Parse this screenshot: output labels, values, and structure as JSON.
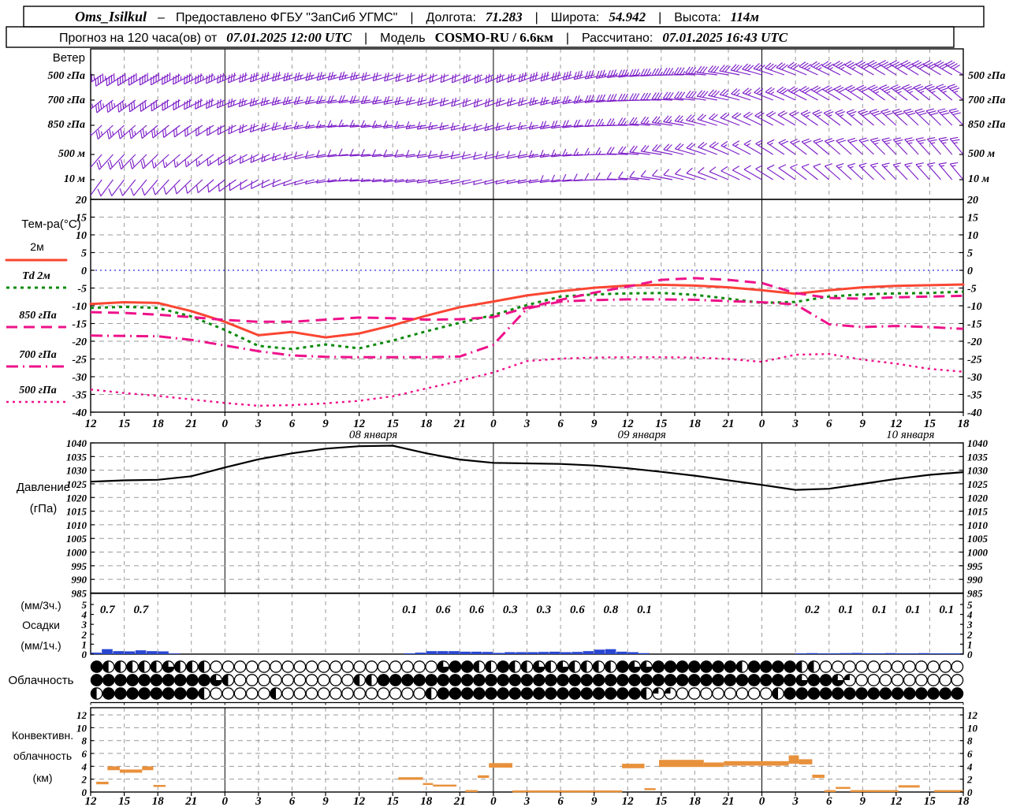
{
  "header": {
    "station": "Oms_Isilkul",
    "dash": "–",
    "provided": "Предоставлено ФГБУ \"ЗапСиб УГМС\"",
    "sep": "|",
    "lon_label": "Долгота:",
    "lon_value": "71.283",
    "lat_label": "Широта:",
    "lat_value": "54.942",
    "alt_label": "Высота:",
    "alt_value": "114м",
    "forecast_label": "Прогноз на 120 часа(ов) от",
    "run_time": "07.01.2025 12:00 UTC",
    "model_label": "Модель",
    "model_value": "COSMO-RU / 6.6км",
    "calc_label": "Рассчитано:",
    "calc_value": "07.01.2025 16:43 UTC"
  },
  "panels": {
    "wind_label": "Ветер",
    "wind_levels": [
      "500 гПа",
      "700 гПа",
      "850 гПа",
      "500 м",
      "10 м"
    ],
    "temp_label": "Тем-ра(°C)",
    "legend_t2m": "2м",
    "legend_td": "Td  2м",
    "legend_850": "850 гПа",
    "legend_700": "700 гПа",
    "legend_500": "500 гПа",
    "pressure_label_1": "Давление",
    "pressure_label_2": "(гПа)",
    "precip_label_1": "(мм/3ч.)",
    "precip_label_2": "Осадки",
    "precip_label_3": "(мм/1ч.)",
    "cloud_label": "Облачность",
    "conv_label_1": "Конвективн.",
    "conv_label_2": "облачность",
    "conv_label_3": "(км)"
  },
  "time_axis": {
    "total_hours": 78,
    "tick_step_hours": 3,
    "hour_labels": [
      "12",
      "15",
      "18",
      "21",
      "0",
      "3",
      "6",
      "9",
      "12",
      "15",
      "18",
      "21",
      "0",
      "3",
      "6",
      "9",
      "12",
      "15",
      "18",
      "21",
      "0",
      "3",
      "6",
      "9",
      "12",
      "15",
      "18"
    ],
    "date_labels": [
      {
        "h": 24,
        "text": "08 января"
      },
      {
        "h": 48,
        "text": "09 января"
      },
      {
        "h": 72,
        "text": "10 января"
      }
    ],
    "midnight_hours": [
      12,
      36,
      60
    ]
  },
  "chart_data": [
    {
      "id": "wind",
      "type": "wind-barbs",
      "title": "Ветер",
      "color": "#7d1ec8",
      "keyframe_hours": [
        0,
        6,
        12,
        18,
        24,
        30,
        36,
        42,
        48,
        54,
        60,
        66,
        72,
        78
      ],
      "rows": [
        {
          "level": "500 гПа",
          "dir_deg": [
            235,
            240,
            245,
            252,
            256,
            250,
            246,
            252,
            262,
            272,
            286,
            296,
            302,
            300
          ],
          "speed_kt": [
            45,
            40,
            34,
            28,
            24,
            20,
            24,
            30,
            34,
            34,
            30,
            34,
            40,
            42
          ]
        },
        {
          "level": "700 гПа",
          "dir_deg": [
            230,
            236,
            246,
            256,
            262,
            256,
            250,
            256,
            266,
            276,
            290,
            300,
            306,
            310
          ],
          "speed_kt": [
            35,
            32,
            28,
            24,
            20,
            18,
            20,
            24,
            30,
            30,
            26,
            30,
            34,
            36
          ]
        },
        {
          "level": "850 гПа",
          "dir_deg": [
            226,
            230,
            240,
            256,
            266,
            260,
            254,
            260,
            270,
            282,
            296,
            306,
            312,
            316
          ],
          "speed_kt": [
            26,
            24,
            20,
            18,
            15,
            14,
            15,
            18,
            24,
            24,
            20,
            24,
            30,
            30
          ]
        },
        {
          "level": "500 м",
          "dir_deg": [
            220,
            226,
            236,
            252,
            266,
            262,
            256,
            262,
            272,
            286,
            300,
            310,
            316,
            320
          ],
          "speed_kt": [
            20,
            18,
            15,
            14,
            10,
            10,
            10,
            14,
            18,
            20,
            16,
            20,
            24,
            24
          ]
        },
        {
          "level": "10 м",
          "dir_deg": [
            215,
            220,
            232,
            250,
            266,
            262,
            256,
            262,
            272,
            286,
            300,
            310,
            316,
            320
          ],
          "speed_kt": [
            10,
            12,
            10,
            8,
            6,
            5,
            6,
            8,
            10,
            12,
            10,
            12,
            15,
            15
          ]
        }
      ]
    },
    {
      "id": "temperature",
      "type": "line",
      "ylabel": "Тем-ра(°C)",
      "ylim": [
        -40,
        20
      ],
      "yticks": [
        20,
        15,
        10,
        5,
        0,
        -5,
        -10,
        -15,
        -20,
        -25,
        -30,
        -35,
        -40
      ],
      "zero_line_color": "#2a2aee",
      "x_hours": [
        0,
        3,
        6,
        9,
        12,
        15,
        18,
        21,
        24,
        27,
        30,
        33,
        36,
        39,
        42,
        45,
        48,
        51,
        54,
        57,
        60,
        63,
        66,
        69,
        72,
        75,
        78
      ],
      "series": [
        {
          "name": "2м",
          "css": "t2m",
          "color": "#fa4632",
          "style": "solid",
          "values": [
            -9.5,
            -9.0,
            -9.2,
            -11.5,
            -14.5,
            -18.3,
            -17.4,
            -18.9,
            -17.8,
            -15.5,
            -12.8,
            -10.4,
            -8.8,
            -7.1,
            -5.9,
            -4.9,
            -4.3,
            -4.1,
            -4.3,
            -4.8,
            -5.6,
            -6.6,
            -5.6,
            -4.8,
            -4.4,
            -4.2,
            -4.0
          ]
        },
        {
          "name": "Td 2м",
          "css": "td",
          "color": "#0c8a0c",
          "style": "dotted",
          "values": [
            -10.6,
            -10.3,
            -10.6,
            -13.0,
            -16.8,
            -21.3,
            -22.2,
            -20.9,
            -22.0,
            -19.8,
            -17.2,
            -14.8,
            -12.6,
            -9.8,
            -7.4,
            -6.8,
            -6.5,
            -6.4,
            -6.9,
            -8.0,
            -9.2,
            -8.9,
            -7.4,
            -6.8,
            -6.5,
            -6.4,
            -6.0
          ]
        },
        {
          "name": "850 гПа",
          "css": "p850",
          "color": "#ee128a",
          "style": "dashed",
          "values": [
            -11.8,
            -12.0,
            -12.5,
            -13.2,
            -14.0,
            -14.5,
            -14.5,
            -13.9,
            -13.3,
            -13.5,
            -13.9,
            -13.8,
            -13.2,
            -10.5,
            -8.3,
            -6.3,
            -4.6,
            -2.7,
            -2.2,
            -2.7,
            -3.6,
            -6.4,
            -7.8,
            -8.0,
            -7.6,
            -7.4,
            -7.2
          ]
        },
        {
          "name": "700 гПа",
          "css": "p700",
          "color": "#ee128a",
          "style": "dashdot",
          "values": [
            -18.4,
            -18.5,
            -18.6,
            -19.6,
            -21.2,
            -22.8,
            -24.0,
            -24.4,
            -24.5,
            -24.5,
            -24.5,
            -24.3,
            -21.0,
            -10.8,
            -8.8,
            -8.4,
            -8.2,
            -8.2,
            -8.3,
            -8.7,
            -9.0,
            -9.6,
            -15.2,
            -16.0,
            -15.7,
            -16.0,
            -16.5
          ]
        },
        {
          "name": "500 гПа",
          "css": "p500",
          "color": "#ee128a",
          "style": "fine-dotted",
          "values": [
            -33.6,
            -34.6,
            -35.4,
            -36.4,
            -37.4,
            -38.2,
            -38.0,
            -37.5,
            -36.8,
            -35.5,
            -33.3,
            -31.2,
            -28.8,
            -25.6,
            -24.9,
            -24.6,
            -24.5,
            -24.5,
            -24.6,
            -25.0,
            -25.8,
            -23.8,
            -23.6,
            -25.2,
            -26.3,
            -27.8,
            -28.6
          ]
        }
      ]
    },
    {
      "id": "pressure",
      "type": "line",
      "ylabel": "Давление (гПа)",
      "ylim": [
        985,
        1040
      ],
      "yticks": [
        1040,
        1035,
        1030,
        1025,
        1020,
        1015,
        1010,
        1005,
        1000,
        995,
        990,
        985
      ],
      "color": "#000000",
      "x_hours": [
        0,
        3,
        6,
        9,
        12,
        15,
        18,
        21,
        24,
        27,
        30,
        33,
        36,
        39,
        42,
        45,
        48,
        51,
        54,
        57,
        60,
        63,
        66,
        69,
        72,
        75,
        78
      ],
      "values": [
        1025.8,
        1026.3,
        1026.5,
        1027.8,
        1031.0,
        1034.0,
        1036.2,
        1037.9,
        1038.8,
        1039.0,
        1036.2,
        1033.9,
        1032.7,
        1032.5,
        1032.3,
        1031.7,
        1030.7,
        1029.4,
        1028.0,
        1026.3,
        1024.6,
        1022.8,
        1023.2,
        1025.0,
        1026.8,
        1028.3,
        1029.3
      ]
    },
    {
      "id": "precipitation",
      "type": "bar",
      "ylabel": "Осадки (мм/3ч.) / (мм/1ч.)",
      "ylim": [
        0,
        5
      ],
      "yticks": [
        5,
        4,
        3,
        2,
        1,
        0
      ],
      "bar_color": "#2946d2",
      "amounts_3h": [
        {
          "h": 1.5,
          "v": "0.7"
        },
        {
          "h": 4.5,
          "v": "0.7"
        },
        {
          "h": 28.5,
          "v": "0.1"
        },
        {
          "h": 31.5,
          "v": "0.6"
        },
        {
          "h": 34.5,
          "v": "0.6"
        },
        {
          "h": 37.5,
          "v": "0.3"
        },
        {
          "h": 40.5,
          "v": "0.3"
        },
        {
          "h": 43.5,
          "v": "0.6"
        },
        {
          "h": 46.5,
          "v": "0.8"
        },
        {
          "h": 49.5,
          "v": "0.1"
        },
        {
          "h": 64.5,
          "v": "0.2"
        },
        {
          "h": 67.5,
          "v": "0.1"
        },
        {
          "h": 70.5,
          "v": "0.1"
        },
        {
          "h": 73.5,
          "v": "0.1"
        },
        {
          "h": 76.5,
          "v": "0.1"
        }
      ],
      "hourly_bars": [
        [
          0,
          0.15
        ],
        [
          1,
          0.5
        ],
        [
          2,
          0.3
        ],
        [
          3,
          0.28
        ],
        [
          4,
          0.38
        ],
        [
          5,
          0.3
        ],
        [
          6,
          0.28
        ],
        [
          7,
          0.07
        ],
        [
          28,
          0.08
        ],
        [
          29,
          0.15
        ],
        [
          30,
          0.3
        ],
        [
          31,
          0.3
        ],
        [
          32,
          0.3
        ],
        [
          33,
          0.25
        ],
        [
          34,
          0.25
        ],
        [
          35,
          0.22
        ],
        [
          36,
          0.13
        ],
        [
          37,
          0.2
        ],
        [
          38,
          0.2
        ],
        [
          39,
          0.2
        ],
        [
          40,
          0.22
        ],
        [
          41,
          0.25
        ],
        [
          42,
          0.2
        ],
        [
          43,
          0.22
        ],
        [
          44,
          0.3
        ],
        [
          45,
          0.45
        ],
        [
          46,
          0.5
        ],
        [
          47,
          0.25
        ],
        [
          48,
          0.2
        ],
        [
          49,
          0.1
        ],
        [
          63,
          0.08
        ],
        [
          64,
          0.1
        ],
        [
          65,
          0.08
        ],
        [
          66,
          0.08
        ],
        [
          67,
          0.1
        ],
        [
          68,
          0.12
        ],
        [
          69,
          0.08
        ],
        [
          70,
          0.08
        ],
        [
          71,
          0.1
        ],
        [
          72,
          0.08
        ],
        [
          73,
          0.08
        ],
        [
          74,
          0.1
        ],
        [
          75,
          0.08
        ],
        [
          76,
          0.08
        ],
        [
          77,
          0.08
        ]
      ]
    },
    {
      "id": "cloudiness",
      "type": "heatmap",
      "ylabel": "Облачность",
      "legend_note": "0=ясно 4=сплошная",
      "rows": [
        "4222223222000000000000000000034422422323222243344444442444422000000000000",
        "4444444444320000000000224444444444444444444444444444444444434431000000000",
        "2444444442000002000000000000244444444444444444211000000002444444444444444"
      ]
    },
    {
      "id": "convective-cloudiness",
      "type": "area",
      "ylabel": "Конвективн. облачность (км)",
      "ylim": [
        0,
        12
      ],
      "yticks": [
        12,
        10,
        8,
        6,
        4,
        2,
        0
      ],
      "color": "#e8913c",
      "segments": [
        [
          0.5,
          1.6,
          1.6,
          1.2
        ],
        [
          1.5,
          2.6,
          4.0,
          3.4
        ],
        [
          2.6,
          4.6,
          3.5,
          3.0
        ],
        [
          4.6,
          5.6,
          4.0,
          3.4
        ],
        [
          5.6,
          6.7,
          1.1,
          0.85
        ],
        [
          27.5,
          29.7,
          2.3,
          1.9
        ],
        [
          29.7,
          30.6,
          1.4,
          1.15
        ],
        [
          30.6,
          32.7,
          1.15,
          0.9
        ],
        [
          33.5,
          34.6,
          0.3,
          0.12
        ],
        [
          34.6,
          35.6,
          2.6,
          2.2
        ],
        [
          35.6,
          37.7,
          4.5,
          3.8
        ],
        [
          37.7,
          47.5,
          0.25,
          0.1
        ],
        [
          47.5,
          49.5,
          4.4,
          3.7
        ],
        [
          49.5,
          50.5,
          0.6,
          0.35
        ],
        [
          50.8,
          54.8,
          5.0,
          3.9
        ],
        [
          54.8,
          56.6,
          4.6,
          3.9
        ],
        [
          56.6,
          62.4,
          4.8,
          4.1
        ],
        [
          62.4,
          63.3,
          5.7,
          4.4
        ],
        [
          63.3,
          64.5,
          5.1,
          4.3
        ],
        [
          64.5,
          65.6,
          2.7,
          2.2
        ],
        [
          65.6,
          66.6,
          0.3,
          0.15
        ],
        [
          66.6,
          67.9,
          0.8,
          0.5
        ],
        [
          67.9,
          72.2,
          0.3,
          0.15
        ],
        [
          72.2,
          74.1,
          1.05,
          0.7
        ],
        [
          75.4,
          78,
          0.3,
          0.15
        ]
      ]
    }
  ]
}
